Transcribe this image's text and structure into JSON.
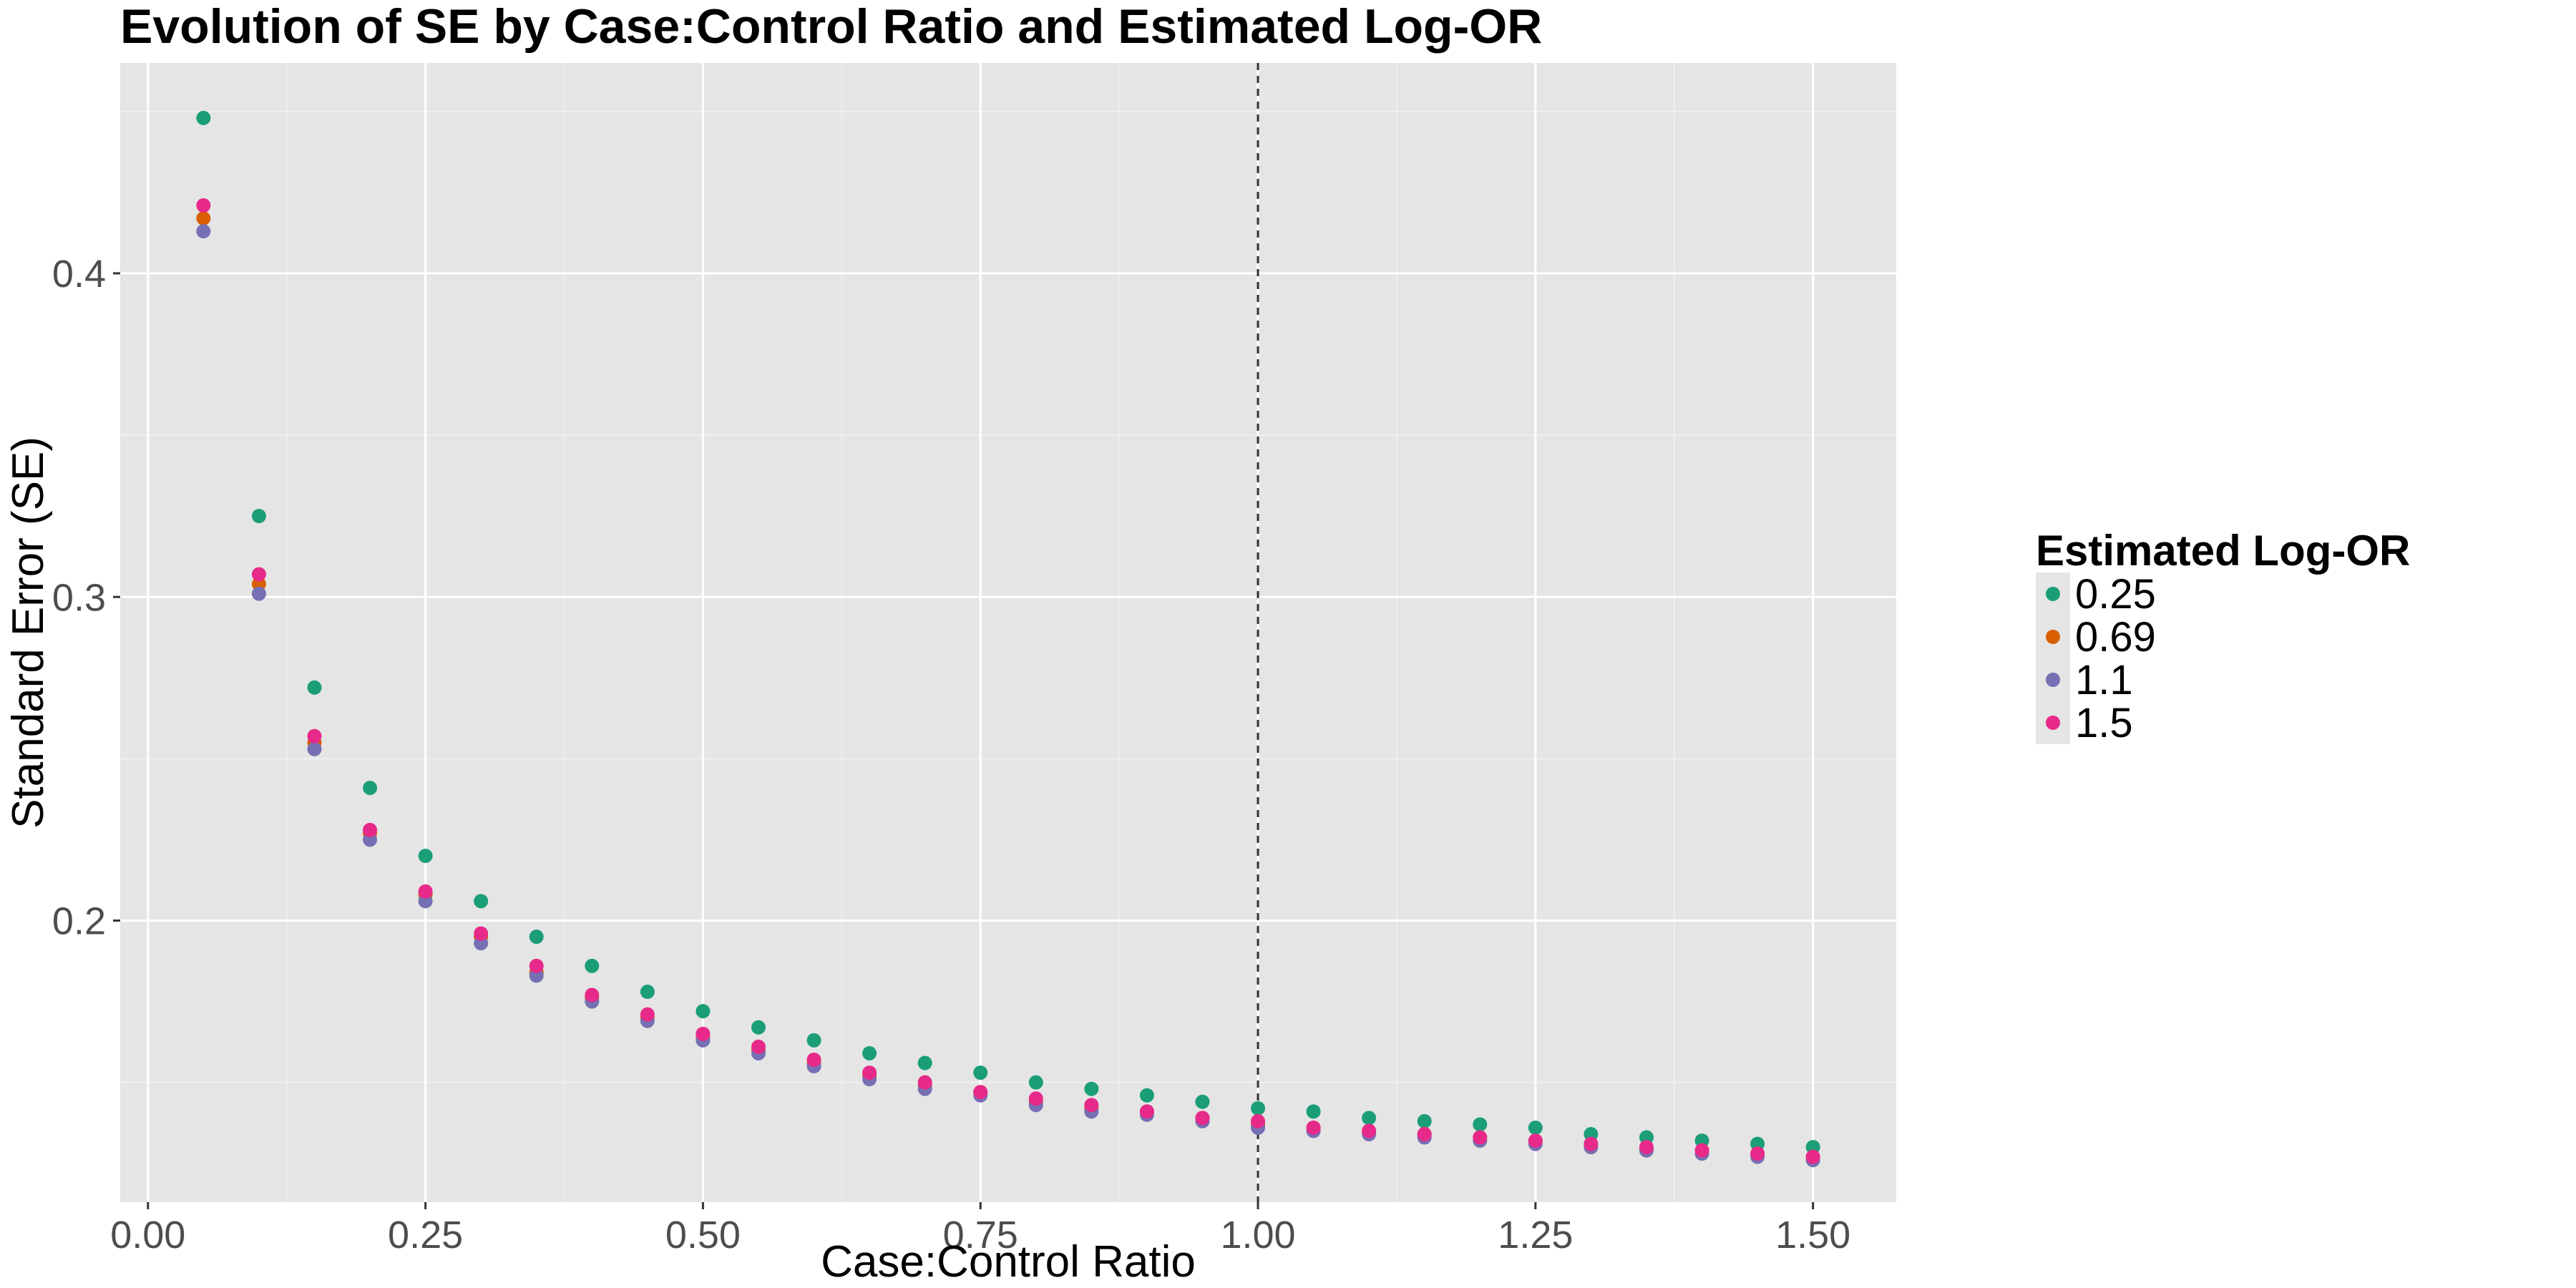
{
  "chart_data": {
    "type": "scatter",
    "title": "Evolution of SE by Case:Control Ratio and Estimated Log-OR",
    "xlabel": "Case:Control Ratio",
    "ylabel": "Standard Error (SE)",
    "xlim": [
      -0.025,
      1.575
    ],
    "ylim": [
      0.113,
      0.465
    ],
    "x_ticks": [
      0.0,
      0.25,
      0.5,
      0.75,
      1.0,
      1.25,
      1.5
    ],
    "x_tick_labels": [
      "0.00",
      "0.25",
      "0.50",
      "0.75",
      "1.00",
      "1.25",
      "1.50"
    ],
    "y_ticks": [
      0.2,
      0.3,
      0.4
    ],
    "y_tick_labels": [
      "0.2",
      "0.3",
      "0.4"
    ],
    "grid": true,
    "reference_line": {
      "x": 1.0,
      "style": "dashed"
    },
    "legend": {
      "title": "Estimated Log-OR",
      "placement": "right"
    },
    "x": [
      0.05,
      0.1,
      0.15,
      0.2,
      0.25,
      0.3,
      0.35,
      0.4,
      0.45,
      0.5,
      0.55,
      0.6,
      0.65,
      0.7,
      0.75,
      0.8,
      0.85,
      0.9,
      0.95,
      1.0,
      1.05,
      1.1,
      1.15,
      1.2,
      1.25,
      1.3,
      1.35,
      1.4,
      1.45,
      1.5
    ],
    "series": [
      {
        "name": "0.25",
        "color": "#1b9e77",
        "values": [
          0.448,
          0.325,
          0.272,
          0.241,
          0.22,
          0.206,
          0.195,
          0.186,
          0.178,
          0.172,
          0.167,
          0.163,
          0.159,
          0.156,
          0.153,
          0.15,
          0.148,
          0.146,
          0.144,
          0.142,
          0.141,
          0.139,
          0.138,
          0.137,
          0.136,
          0.134,
          0.133,
          0.132,
          0.131,
          0.13
        ]
      },
      {
        "name": "0.69",
        "color": "#d95f02",
        "values": [
          0.417,
          0.304,
          0.255,
          0.227,
          0.208,
          0.195,
          0.184,
          0.176,
          0.17,
          0.164,
          0.16,
          0.156,
          0.152,
          0.149,
          0.147,
          0.144,
          0.142,
          0.141,
          0.139,
          0.137,
          0.136,
          0.135,
          0.134,
          0.133,
          0.132,
          0.13,
          0.129,
          0.128,
          0.128,
          0.127
        ]
      },
      {
        "name": "1.1",
        "color": "#7570b3",
        "values": [
          0.413,
          0.301,
          0.253,
          0.225,
          0.206,
          0.193,
          0.183,
          0.175,
          0.169,
          0.163,
          0.159,
          0.155,
          0.151,
          0.148,
          0.146,
          0.143,
          0.141,
          0.14,
          0.138,
          0.136,
          0.135,
          0.134,
          0.133,
          0.132,
          0.131,
          0.13,
          0.129,
          0.128,
          0.127,
          0.126
        ]
      },
      {
        "name": "1.5",
        "color": "#e7298a",
        "values": [
          0.421,
          0.307,
          0.257,
          0.228,
          0.209,
          0.196,
          0.186,
          0.177,
          0.171,
          0.165,
          0.161,
          0.157,
          0.153,
          0.15,
          0.147,
          0.145,
          0.143,
          0.141,
          0.139,
          0.138,
          0.136,
          0.135,
          0.134,
          0.133,
          0.132,
          0.131,
          0.13,
          0.129,
          0.128,
          0.127
        ]
      }
    ]
  }
}
